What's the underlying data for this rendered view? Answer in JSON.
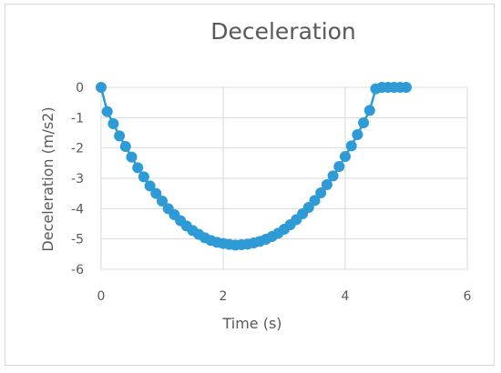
{
  "colors": {
    "series": "#2E9AD6",
    "grid": "#d9d9d9",
    "text": "#595959",
    "border": "#d9d9d9",
    "background": "#ffffff"
  },
  "chart_data": {
    "type": "scatter",
    "title": "Deceleration",
    "xlabel": "Time (s)",
    "ylabel": "Deceleration (m/s2)",
    "xlim": [
      0,
      6
    ],
    "ylim": [
      -6,
      0
    ],
    "xticks": [
      "0",
      "2",
      "4",
      "6"
    ],
    "yticks": [
      "0",
      "-1",
      "-2",
      "-3",
      "-4",
      "-5",
      "-6"
    ],
    "grid": {
      "x": true,
      "y": true
    },
    "legend": "none",
    "marker": "circle",
    "line": "straight",
    "series": [
      {
        "x": [
          0,
          0.1,
          0.2,
          0.3,
          0.4,
          0.5,
          0.6,
          0.7,
          0.8,
          0.9,
          1.0,
          1.1,
          1.2,
          1.3,
          1.4,
          1.5,
          1.6,
          1.7,
          1.8,
          1.9,
          2.0,
          2.1,
          2.2,
          2.3,
          2.4,
          2.5,
          2.6,
          2.7,
          2.8,
          2.9,
          3.0,
          3.1,
          3.2,
          3.3,
          3.4,
          3.5,
          3.6,
          3.7,
          3.8,
          3.9,
          4.0,
          4.1,
          4.2,
          4.3,
          4.4,
          4.5,
          4.6,
          4.7,
          4.8,
          4.9,
          5.0
        ],
        "y": [
          0,
          -0.8,
          -1.2,
          -1.6,
          -1.95,
          -2.3,
          -2.65,
          -2.95,
          -3.25,
          -3.5,
          -3.75,
          -4.0,
          -4.2,
          -4.4,
          -4.57,
          -4.72,
          -4.85,
          -4.96,
          -5.05,
          -5.11,
          -5.15,
          -5.18,
          -5.2,
          -5.19,
          -5.17,
          -5.13,
          -5.08,
          -5.01,
          -4.92,
          -4.81,
          -4.68,
          -4.53,
          -4.36,
          -4.17,
          -3.96,
          -3.73,
          -3.48,
          -3.21,
          -2.92,
          -2.61,
          -2.28,
          -1.93,
          -1.56,
          -1.17,
          -0.76,
          -0.05,
          0,
          0,
          0,
          0,
          0
        ]
      }
    ]
  }
}
